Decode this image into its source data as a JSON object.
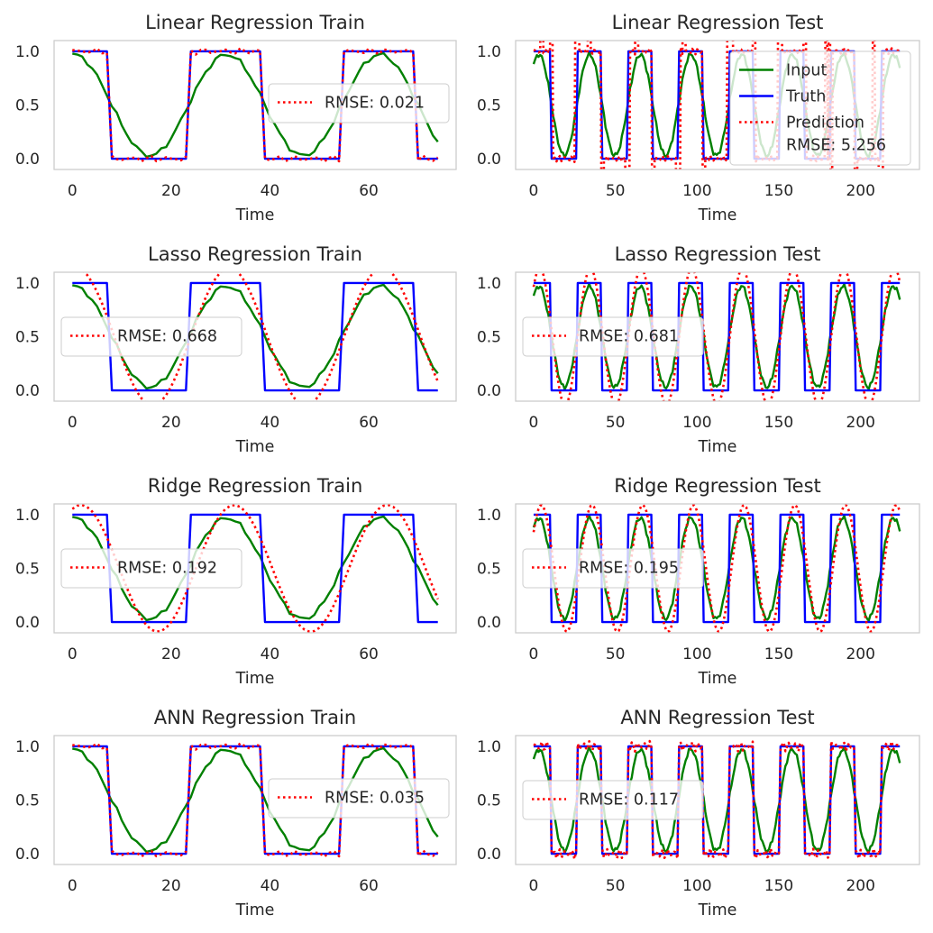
{
  "colors": {
    "input": "#008000",
    "truth": "#0000ff",
    "prediction": "#ff0000",
    "frame": "#cccccc",
    "text": "#262626"
  },
  "chart_data": [
    {
      "type": "line",
      "title": "Linear Regression Train",
      "xlabel": "Time",
      "ylabel": "",
      "xlim": [
        -3.7,
        77.7
      ],
      "ylim": [
        -0.1,
        1.1
      ],
      "xticks": [
        0,
        20,
        40,
        60
      ],
      "yticks": [
        0.0,
        0.5,
        1.0
      ],
      "grid": false,
      "period": 31,
      "phase": 8,
      "n": 75,
      "legend": {
        "placement": "center-right",
        "entries": [
          {
            "series": "prediction",
            "label": "RMSE: 0.021"
          }
        ]
      },
      "series": [
        {
          "key": "input",
          "kind": "sinusoid",
          "color": "#008000"
        },
        {
          "key": "truth",
          "kind": "square",
          "color": "#0000ff"
        },
        {
          "key": "prediction",
          "kind": "square-noisy",
          "amplitude": 0.03,
          "color": "#ff0000"
        }
      ]
    },
    {
      "type": "line",
      "title": "Linear Regression Test",
      "xlabel": "Time",
      "ylabel": "",
      "xlim": [
        -11,
        236
      ],
      "ylim": [
        -0.1,
        1.1
      ],
      "xticks": [
        0,
        50,
        100,
        150,
        200
      ],
      "yticks": [
        0.0,
        0.5,
        1.0
      ],
      "grid": false,
      "period": 31,
      "phase": 11,
      "n": 225,
      "legend": {
        "placement": "upper-right",
        "entries": [
          {
            "series": "input",
            "label": "Input"
          },
          {
            "series": "truth",
            "label": "Truth"
          },
          {
            "series": "prediction",
            "label": "Prediction",
            "label2": "RMSE: 5.256"
          }
        ]
      },
      "series": [
        {
          "key": "input",
          "kind": "sinusoid",
          "color": "#008000"
        },
        {
          "key": "truth",
          "kind": "square",
          "color": "#0000ff"
        },
        {
          "key": "prediction",
          "kind": "spiky",
          "color": "#ff0000"
        }
      ]
    },
    {
      "type": "line",
      "title": "Lasso Regression Train",
      "xlabel": "Time",
      "ylabel": "",
      "xlim": [
        -3.7,
        77.7
      ],
      "ylim": [
        -0.1,
        1.1
      ],
      "xticks": [
        0,
        20,
        40,
        60
      ],
      "yticks": [
        0.0,
        0.5,
        1.0
      ],
      "grid": false,
      "period": 31,
      "phase": 8,
      "n": 75,
      "legend": {
        "placement": "center-left",
        "entries": [
          {
            "series": "prediction",
            "label": "RMSE: 0.668"
          }
        ]
      },
      "series": [
        {
          "key": "input",
          "kind": "sinusoid",
          "color": "#008000"
        },
        {
          "key": "truth",
          "kind": "square",
          "color": "#0000ff"
        },
        {
          "key": "prediction",
          "kind": "sinusoid-scaled",
          "gain": 1.28,
          "shift": 0.5,
          "color": "#ff0000"
        }
      ]
    },
    {
      "type": "line",
      "title": "Lasso Regression Test",
      "xlabel": "Time",
      "ylabel": "",
      "xlim": [
        -11,
        236
      ],
      "ylim": [
        -0.1,
        1.1
      ],
      "xticks": [
        0,
        50,
        100,
        150,
        200
      ],
      "yticks": [
        0.0,
        0.5,
        1.0
      ],
      "grid": false,
      "period": 31,
      "phase": 11,
      "n": 225,
      "legend": {
        "placement": "center-left",
        "entries": [
          {
            "series": "prediction",
            "label": "RMSE: 0.681"
          }
        ]
      },
      "series": [
        {
          "key": "input",
          "kind": "sinusoid",
          "color": "#008000"
        },
        {
          "key": "truth",
          "kind": "square",
          "color": "#0000ff"
        },
        {
          "key": "prediction",
          "kind": "sinusoid-scaled",
          "gain": 1.28,
          "shift": 0.5,
          "color": "#ff0000"
        }
      ]
    },
    {
      "type": "line",
      "title": "Ridge Regression Train",
      "xlabel": "Time",
      "ylabel": "",
      "xlim": [
        -3.7,
        77.7
      ],
      "ylim": [
        -0.1,
        1.1
      ],
      "xticks": [
        0,
        20,
        40,
        60
      ],
      "yticks": [
        0.0,
        0.5,
        1.0
      ],
      "grid": false,
      "period": 31,
      "phase": 8,
      "n": 75,
      "legend": {
        "placement": "center-left",
        "entries": [
          {
            "series": "prediction",
            "label": "RMSE: 0.192"
          }
        ]
      },
      "series": [
        {
          "key": "input",
          "kind": "sinusoid",
          "color": "#008000"
        },
        {
          "key": "truth",
          "kind": "square",
          "color": "#0000ff"
        },
        {
          "key": "prediction",
          "kind": "sinusoid-scaled",
          "gain": 1.18,
          "shift": 1.5,
          "color": "#ff0000"
        }
      ]
    },
    {
      "type": "line",
      "title": "Ridge Regression Test",
      "xlabel": "Time",
      "ylabel": "",
      "xlim": [
        -11,
        236
      ],
      "ylim": [
        -0.1,
        1.1
      ],
      "xticks": [
        0,
        50,
        100,
        150,
        200
      ],
      "yticks": [
        0.0,
        0.5,
        1.0
      ],
      "grid": false,
      "period": 31,
      "phase": 11,
      "n": 225,
      "legend": {
        "placement": "center-left",
        "entries": [
          {
            "series": "prediction",
            "label": "RMSE: 0.195"
          }
        ]
      },
      "series": [
        {
          "key": "input",
          "kind": "sinusoid",
          "color": "#008000"
        },
        {
          "key": "truth",
          "kind": "square",
          "color": "#0000ff"
        },
        {
          "key": "prediction",
          "kind": "sinusoid-scaled",
          "gain": 1.18,
          "shift": 1.5,
          "color": "#ff0000"
        }
      ]
    },
    {
      "type": "line",
      "title": "ANN Regression Train",
      "xlabel": "Time",
      "ylabel": "",
      "xlim": [
        -3.7,
        77.7
      ],
      "ylim": [
        -0.1,
        1.1
      ],
      "xticks": [
        0,
        20,
        40,
        60
      ],
      "yticks": [
        0.0,
        0.5,
        1.0
      ],
      "grid": false,
      "period": 31,
      "phase": 8,
      "n": 75,
      "legend": {
        "placement": "center-right",
        "entries": [
          {
            "series": "prediction",
            "label": "RMSE: 0.035"
          }
        ]
      },
      "series": [
        {
          "key": "input",
          "kind": "sinusoid",
          "color": "#008000"
        },
        {
          "key": "truth",
          "kind": "square",
          "color": "#0000ff"
        },
        {
          "key": "prediction",
          "kind": "square-noisy",
          "amplitude": 0.03,
          "color": "#ff0000"
        }
      ]
    },
    {
      "type": "line",
      "title": "ANN Regression Test",
      "xlabel": "Time",
      "ylabel": "",
      "xlim": [
        -11,
        236
      ],
      "ylim": [
        -0.1,
        1.1
      ],
      "xticks": [
        0,
        50,
        100,
        150,
        200
      ],
      "yticks": [
        0.0,
        0.5,
        1.0
      ],
      "grid": false,
      "period": 31,
      "phase": 11,
      "n": 225,
      "legend": {
        "placement": "center-left",
        "entries": [
          {
            "series": "prediction",
            "label": "RMSE: 0.117"
          }
        ]
      },
      "series": [
        {
          "key": "input",
          "kind": "sinusoid",
          "color": "#008000"
        },
        {
          "key": "truth",
          "kind": "square",
          "color": "#0000ff"
        },
        {
          "key": "prediction",
          "kind": "square-noisy",
          "amplitude": 0.05,
          "color": "#ff0000"
        }
      ]
    }
  ]
}
